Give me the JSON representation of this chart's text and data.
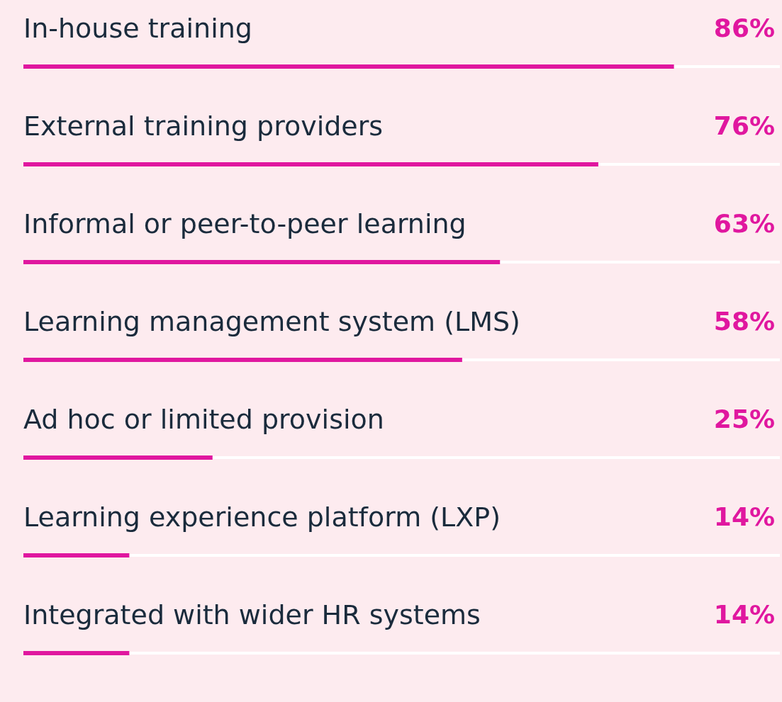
{
  "chart_data": {
    "type": "bar",
    "orientation": "horizontal",
    "categories": [
      "In-house training",
      "External training providers",
      "Informal or peer-to-peer learning",
      "Learning management system (LMS)",
      "Ad hoc or limited provision",
      "Learning experience platform (LXP)",
      "Integrated with wider HR systems"
    ],
    "values": [
      86,
      76,
      63,
      58,
      25,
      14,
      14
    ],
    "value_labels": [
      "86%",
      "76%",
      "63%",
      "58%",
      "25%",
      "14%",
      "14%"
    ],
    "color": "#e0179f",
    "xlim": [
      0,
      100
    ]
  }
}
